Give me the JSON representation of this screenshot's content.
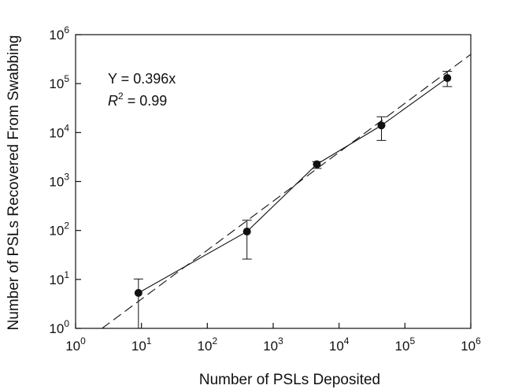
{
  "chart_data": {
    "type": "scatter",
    "xlabel": "Number of PSLs Deposited",
    "ylabel": "Number of PSLs Recovered From Swabbing",
    "xscale": "log",
    "yscale": "log",
    "xlim": [
      1,
      1000000
    ],
    "ylim": [
      1,
      1000000
    ],
    "x_ticks": [
      "10^0",
      "10^1",
      "10^2",
      "10^3",
      "10^4",
      "10^5",
      "10^6"
    ],
    "y_ticks": [
      "10^0",
      "10^1",
      "10^2",
      "10^3",
      "10^4",
      "10^5",
      "10^6"
    ],
    "tick_base": "10",
    "tick_exponents": [
      "0",
      "1",
      "2",
      "3",
      "4",
      "5",
      "6"
    ],
    "grid": false,
    "points": [
      {
        "x": 9,
        "y": 5.3,
        "err_low": 1,
        "err_high": 10.2
      },
      {
        "x": 400,
        "y": 95,
        "err_low": 26,
        "err_high": 162
      },
      {
        "x": 4600,
        "y": 2250,
        "err_low": 1850,
        "err_high": 2550
      },
      {
        "x": 44000,
        "y": 14000,
        "err_low": 6900,
        "err_high": 21000
      },
      {
        "x": 440000,
        "y": 130000,
        "err_low": 87000,
        "err_high": 178000
      }
    ],
    "fit": {
      "slope": 0.396,
      "equation_label": "Y = 0.396x",
      "r2_prefix": "R",
      "r2_exp": "2",
      "r2_suffix": " = 0.99"
    },
    "colors": {
      "marker": "#111111",
      "line": "#111111",
      "axis": "#111111"
    }
  }
}
